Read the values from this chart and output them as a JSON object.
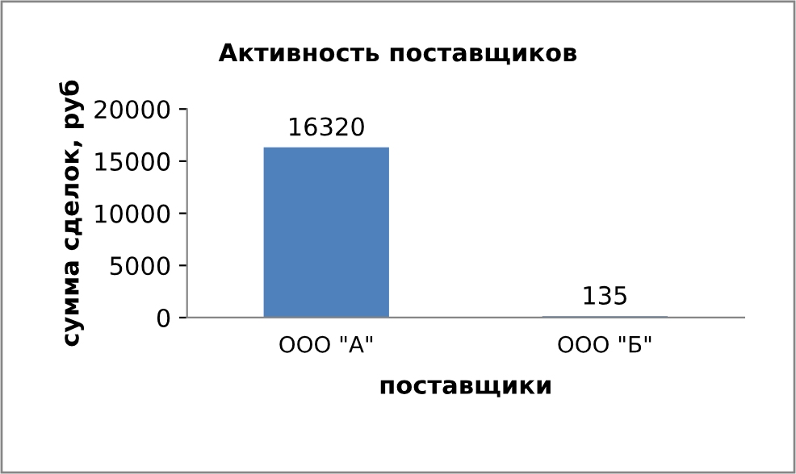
{
  "chart_data": {
    "type": "bar",
    "title": "Активность поставщиков",
    "xlabel": "поставщики",
    "ylabel": "сумма сделок, руб",
    "categories": [
      "ООО \"А\"",
      "ООО \"Б\""
    ],
    "values": [
      16320,
      135
    ],
    "color": "#4f81bd",
    "ylim": [
      0,
      20000
    ],
    "yticks": [
      0,
      5000,
      10000,
      15000,
      20000
    ],
    "grid": false,
    "data_labels": true
  }
}
